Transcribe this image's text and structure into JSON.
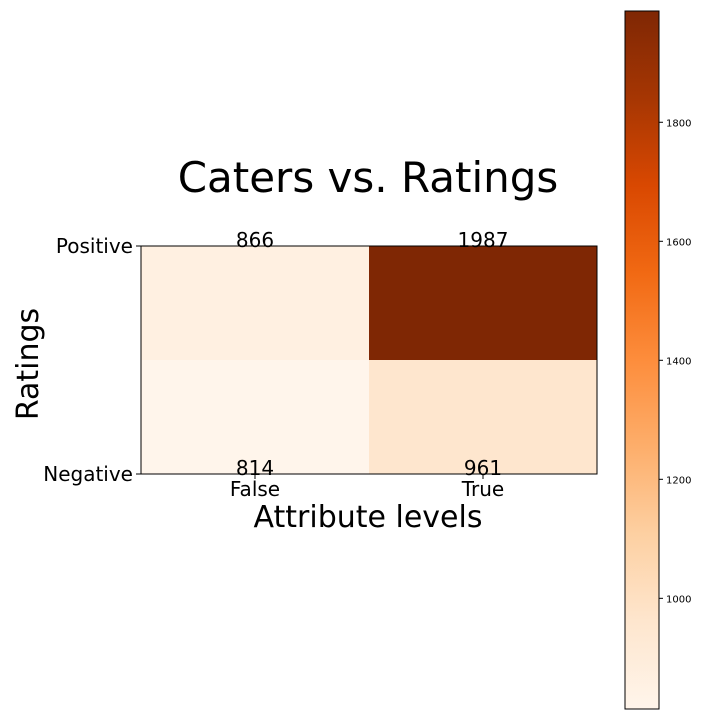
{
  "chart_data": {
    "type": "heatmap",
    "title": "Caters vs. Ratings",
    "xlabel": "Attribute levels",
    "ylabel": "Ratings",
    "x_categories": [
      "False",
      "True"
    ],
    "y_categories": [
      "Positive",
      "Negative"
    ],
    "cells": [
      {
        "x": "False",
        "y": "Positive",
        "value": 866
      },
      {
        "x": "True",
        "y": "Positive",
        "value": 1987
      },
      {
        "x": "False",
        "y": "Negative",
        "value": 814
      },
      {
        "x": "True",
        "y": "Negative",
        "value": 961
      }
    ],
    "colormap": "Oranges",
    "color_min": 814,
    "color_max": 1987,
    "colorbar": {
      "ticks": [
        1000,
        1200,
        1400,
        1600,
        1800
      ],
      "tick_labels": [
        "1000",
        "1200",
        "1400",
        "1600",
        "1800"
      ]
    },
    "grid": false
  }
}
